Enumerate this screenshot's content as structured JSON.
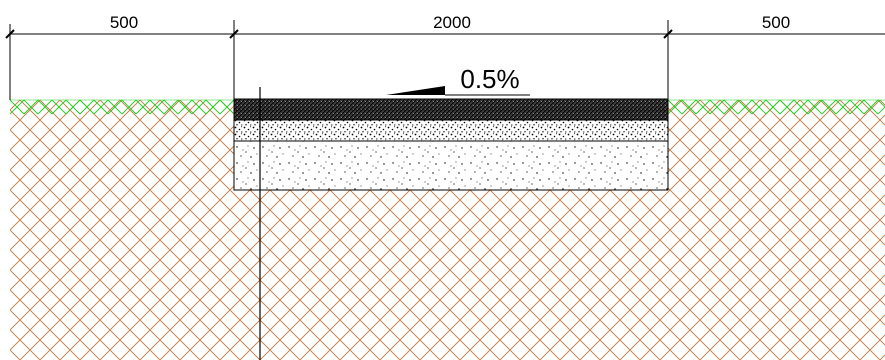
{
  "dimensions": {
    "left_width": "500",
    "center_width": "2000",
    "right_width": "500"
  },
  "slope": {
    "label": "0.5%"
  },
  "colors": {
    "soil_hatch": "#c07840",
    "grass_hatch": "#22cc22",
    "line": "#000000"
  }
}
